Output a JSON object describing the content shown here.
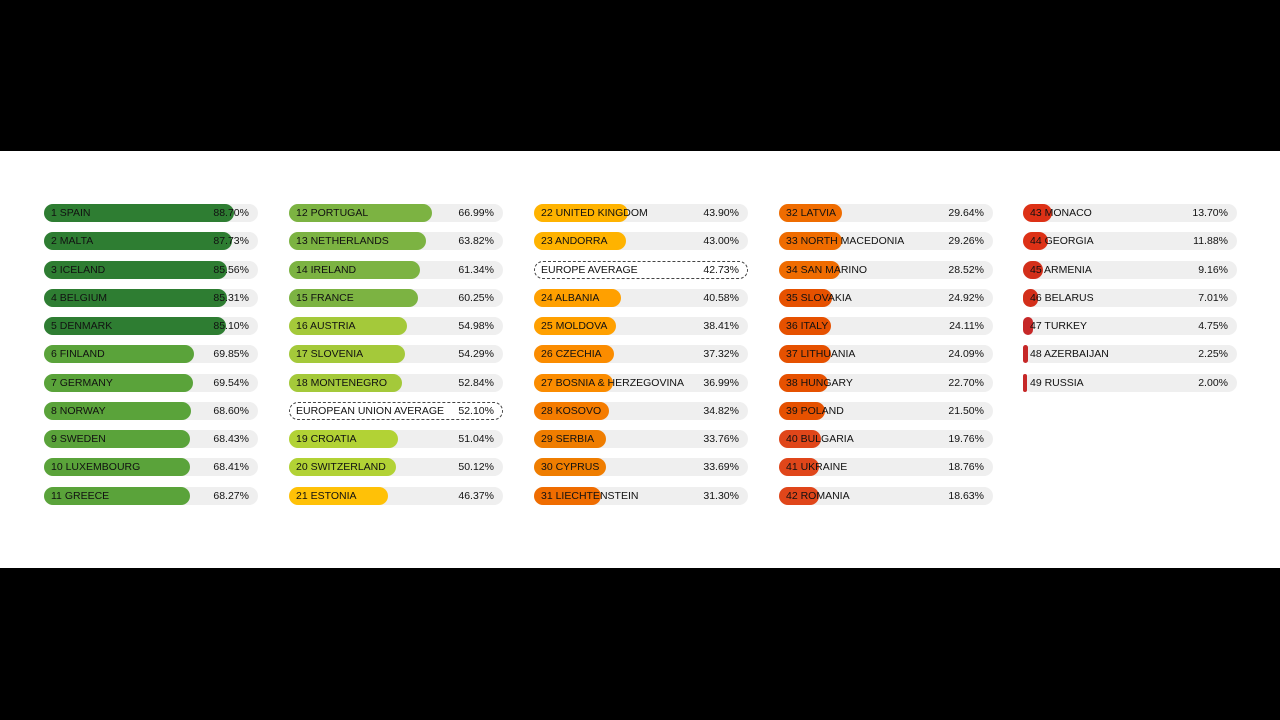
{
  "chart_data": {
    "type": "bar",
    "orientation": "horizontal",
    "value_unit": "%",
    "xlim": [
      0,
      100
    ],
    "grid": false,
    "columns": [
      [
        {
          "label": "1 SPAIN",
          "value_text": "88.70%",
          "value": 88.7,
          "color": "#2e7d32"
        },
        {
          "label": "2 MALTA",
          "value_text": "87.73%",
          "value": 87.73,
          "color": "#2e7d32"
        },
        {
          "label": "3 ICELAND",
          "value_text": "85.56%",
          "value": 85.56,
          "color": "#2e7d32"
        },
        {
          "label": "4 BELGIUM",
          "value_text": "85.31%",
          "value": 85.31,
          "color": "#2e7d32"
        },
        {
          "label": "5 DENMARK",
          "value_text": "85.10%",
          "value": 85.1,
          "color": "#2e7d32"
        },
        {
          "label": "6 FINLAND",
          "value_text": "69.85%",
          "value": 69.85,
          "color": "#5aa33a"
        },
        {
          "label": "7 GERMANY",
          "value_text": "69.54%",
          "value": 69.54,
          "color": "#5aa33a"
        },
        {
          "label": "8 NORWAY",
          "value_text": "68.60%",
          "value": 68.6,
          "color": "#5aa33a"
        },
        {
          "label": "9 SWEDEN",
          "value_text": "68.43%",
          "value": 68.43,
          "color": "#5aa33a"
        },
        {
          "label": "10 LUXEMBOURG",
          "value_text": "68.41%",
          "value": 68.41,
          "color": "#5aa33a"
        },
        {
          "label": "11 GREECE",
          "value_text": "68.27%",
          "value": 68.27,
          "color": "#5aa33a"
        }
      ],
      [
        {
          "label": "12 PORTUGAL",
          "value_text": "66.99%",
          "value": 66.99,
          "color": "#7cb342"
        },
        {
          "label": "13 NETHERLANDS",
          "value_text": "63.82%",
          "value": 63.82,
          "color": "#7cb342"
        },
        {
          "label": "14 IRELAND",
          "value_text": "61.34%",
          "value": 61.34,
          "color": "#7cb342"
        },
        {
          "label": "15 FRANCE",
          "value_text": "60.25%",
          "value": 60.25,
          "color": "#7cb342"
        },
        {
          "label": "16 AUSTRIA",
          "value_text": "54.98%",
          "value": 54.98,
          "color": "#a4c93a"
        },
        {
          "label": "17 SLOVENIA",
          "value_text": "54.29%",
          "value": 54.29,
          "color": "#a4c93a"
        },
        {
          "label": "18 MONTENEGRO",
          "value_text": "52.84%",
          "value": 52.84,
          "color": "#a4c93a"
        },
        {
          "label": "EUROPEAN UNION AVERAGE",
          "value_text": "52.10%",
          "value": 52.1,
          "average": true
        },
        {
          "label": "19 CROATIA",
          "value_text": "51.04%",
          "value": 51.04,
          "color": "#b2d235"
        },
        {
          "label": "20 SWITZERLAND",
          "value_text": "50.12%",
          "value": 50.12,
          "color": "#b2d235"
        },
        {
          "label": "21 ESTONIA",
          "value_text": "46.37%",
          "value": 46.37,
          "color": "#ffc107"
        }
      ],
      [
        {
          "label": "22 UNITED KINGDOM",
          "value_text": "43.90%",
          "value": 43.9,
          "color": "#ffb300"
        },
        {
          "label": "23 ANDORRA",
          "value_text": "43.00%",
          "value": 43.0,
          "color": "#ffb300"
        },
        {
          "label": "EUROPE AVERAGE",
          "value_text": "42.73%",
          "value": 42.73,
          "average": true
        },
        {
          "label": "24 ALBANIA",
          "value_text": "40.58%",
          "value": 40.58,
          "color": "#ffa000"
        },
        {
          "label": "25 MOLDOVA",
          "value_text": "38.41%",
          "value": 38.41,
          "color": "#ffa000"
        },
        {
          "label": "26 CZECHIA",
          "value_text": "37.32%",
          "value": 37.32,
          "color": "#fb8c00"
        },
        {
          "label": "27 BOSNIA & HERZEGOVINA",
          "value_text": "36.99%",
          "value": 36.99,
          "color": "#fb8c00"
        },
        {
          "label": "28 KOSOVO",
          "value_text": "34.82%",
          "value": 34.82,
          "color": "#f57c00"
        },
        {
          "label": "29 SERBIA",
          "value_text": "33.76%",
          "value": 33.76,
          "color": "#ef7d00"
        },
        {
          "label": "30 CYPRUS",
          "value_text": "33.69%",
          "value": 33.69,
          "color": "#ef7d00"
        },
        {
          "label": "31 LIECHTENSTEIN",
          "value_text": "31.30%",
          "value": 31.3,
          "color": "#ef6c00"
        }
      ],
      [
        {
          "label": "32 LATVIA",
          "value_text": "29.64%",
          "value": 29.64,
          "color": "#ef6c00"
        },
        {
          "label": "33 NORTH MACEDONIA",
          "value_text": "29.26%",
          "value": 29.26,
          "color": "#ef6c00"
        },
        {
          "label": "34 SAN MARINO",
          "value_text": "28.52%",
          "value": 28.52,
          "color": "#ef6c00"
        },
        {
          "label": "35 SLOVAKIA",
          "value_text": "24.92%",
          "value": 24.92,
          "color": "#e65100"
        },
        {
          "label": "36 ITALY",
          "value_text": "24.11%",
          "value": 24.11,
          "color": "#e65100"
        },
        {
          "label": "37 LITHUANIA",
          "value_text": "24.09%",
          "value": 24.09,
          "color": "#e65100"
        },
        {
          "label": "38 HUNGARY",
          "value_text": "22.70%",
          "value": 22.7,
          "color": "#e65100"
        },
        {
          "label": "39 POLAND",
          "value_text": "21.50%",
          "value": 21.5,
          "color": "#e65100"
        },
        {
          "label": "40 BULGARIA",
          "value_text": "19.76%",
          "value": 19.76,
          "color": "#e0461a"
        },
        {
          "label": "41 UKRAINE",
          "value_text": "18.76%",
          "value": 18.76,
          "color": "#e0461a"
        },
        {
          "label": "42 ROMANIA",
          "value_text": "18.63%",
          "value": 18.63,
          "color": "#e0461a"
        }
      ],
      [
        {
          "label": "43 MONACO",
          "value_text": "13.70%",
          "value": 13.7,
          "color": "#dd3116"
        },
        {
          "label": "44 GEORGIA",
          "value_text": "11.88%",
          "value": 11.88,
          "color": "#dd3116"
        },
        {
          "label": "45 ARMENIA",
          "value_text": "9.16%",
          "value": 9.16,
          "color": "#d32f1a"
        },
        {
          "label": "46 BELARUS",
          "value_text": "7.01%",
          "value": 7.01,
          "color": "#d32f1a"
        },
        {
          "label": "47 TURKEY",
          "value_text": "4.75%",
          "value": 4.75,
          "color": "#c62828"
        },
        {
          "label": "48 AZERBAIJAN",
          "value_text": "2.25%",
          "value": 2.25,
          "color": "#c62828"
        },
        {
          "label": "49 RUSSIA",
          "value_text": "2.00%",
          "value": 2.0,
          "color": "#c62828"
        }
      ]
    ]
  }
}
